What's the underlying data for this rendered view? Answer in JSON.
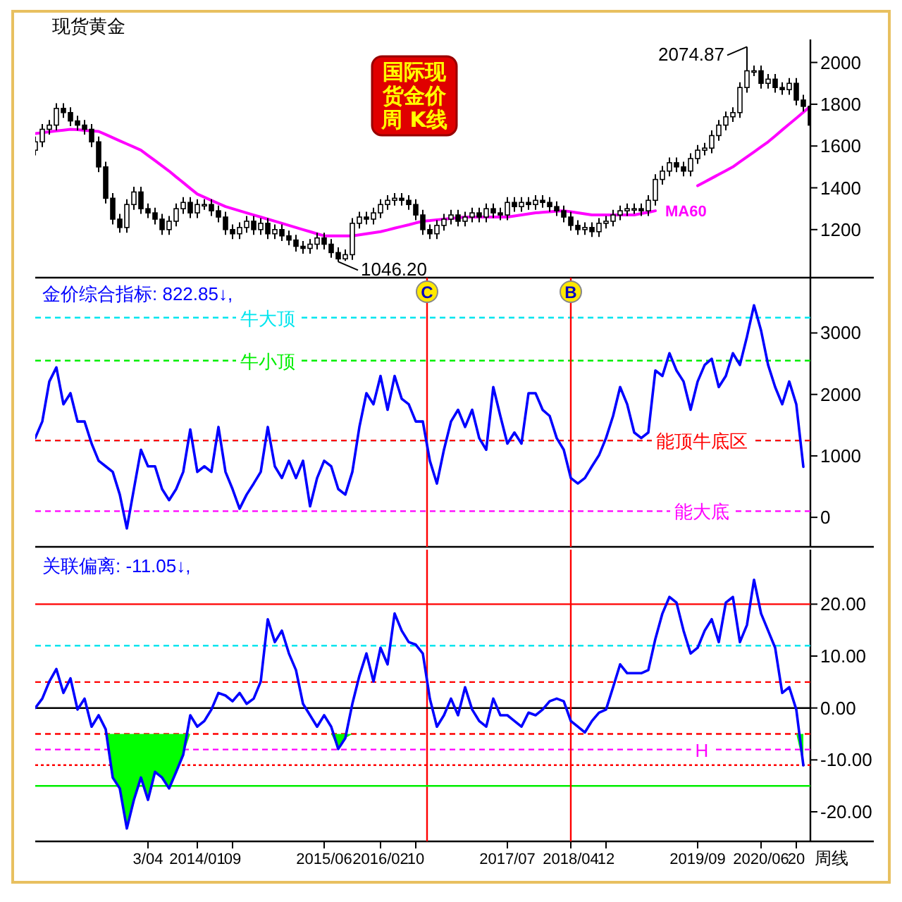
{
  "chart_data": [
    {
      "type": "candlestick",
      "title": "现货黄金",
      "annotations": [
        "国际现货金价周 K线",
        "2074.87",
        "1046.20"
      ],
      "categories": [
        null,
        null,
        null,
        null,
        null,
        null,
        null,
        null,
        null,
        null,
        null,
        null,
        null,
        null,
        null,
        null,
        null,
        null,
        null,
        null,
        null,
        null,
        null,
        null,
        null,
        null,
        null,
        null,
        null,
        null,
        null,
        null,
        null,
        null,
        null,
        null,
        null,
        null,
        null,
        null,
        null,
        null,
        null,
        null,
        null,
        null,
        null,
        null,
        null,
        null,
        null,
        null,
        null,
        null,
        null,
        null,
        null,
        null,
        null,
        null,
        null,
        null,
        null,
        null,
        null,
        null,
        null,
        null,
        null,
        null,
        null,
        null,
        null,
        null,
        null,
        null,
        null,
        null,
        null,
        null,
        null,
        null,
        null,
        null,
        null,
        null,
        null,
        null,
        null,
        null,
        null,
        null,
        null,
        null,
        null,
        null,
        null,
        null,
        null,
        null,
        null,
        null,
        null,
        null,
        null,
        null,
        null,
        null,
        null,
        null,
        null
      ],
      "ohlc": [
        [
          1580,
          1645,
          1555,
          1620
        ],
        [
          1620,
          1705,
          1595,
          1680
        ],
        [
          1680,
          1725,
          1655,
          1700
        ],
        [
          1700,
          1805,
          1675,
          1780
        ],
        [
          1780,
          1805,
          1735,
          1760
        ],
        [
          1760,
          1785,
          1695,
          1720
        ],
        [
          1720,
          1745,
          1675,
          1700
        ],
        [
          1700,
          1725,
          1655,
          1680
        ],
        [
          1680,
          1705,
          1595,
          1620
        ],
        [
          1620,
          1645,
          1475,
          1500
        ],
        [
          1500,
          1525,
          1325,
          1350
        ],
        [
          1350,
          1375,
          1225,
          1250
        ],
        [
          1250,
          1275,
          1185,
          1210
        ],
        [
          1210,
          1345,
          1185,
          1320
        ],
        [
          1320,
          1405,
          1295,
          1380
        ],
        [
          1380,
          1405,
          1275,
          1300
        ],
        [
          1300,
          1325,
          1255,
          1280
        ],
        [
          1280,
          1305,
          1225,
          1250
        ],
        [
          1250,
          1275,
          1175,
          1200
        ],
        [
          1200,
          1265,
          1175,
          1240
        ],
        [
          1240,
          1325,
          1215,
          1300
        ],
        [
          1300,
          1355,
          1275,
          1330
        ],
        [
          1330,
          1355,
          1255,
          1280
        ],
        [
          1280,
          1345,
          1255,
          1320
        ],
        [
          1320,
          1345,
          1295,
          1320
        ],
        [
          1320,
          1345,
          1265,
          1290
        ],
        [
          1290,
          1315,
          1235,
          1260
        ],
        [
          1260,
          1285,
          1175,
          1200
        ],
        [
          1200,
          1225,
          1155,
          1180
        ],
        [
          1180,
          1235,
          1155,
          1210
        ],
        [
          1210,
          1265,
          1185,
          1240
        ],
        [
          1240,
          1265,
          1175,
          1200
        ],
        [
          1200,
          1255,
          1175,
          1230
        ],
        [
          1230,
          1255,
          1155,
          1180
        ],
        [
          1180,
          1225,
          1155,
          1200
        ],
        [
          1200,
          1225,
          1145,
          1170
        ],
        [
          1170,
          1195,
          1125,
          1150
        ],
        [
          1150,
          1175,
          1095,
          1120
        ],
        [
          1120,
          1145,
          1085,
          1110
        ],
        [
          1110,
          1155,
          1085,
          1130
        ],
        [
          1130,
          1185,
          1105,
          1160
        ],
        [
          1160,
          1185,
          1105,
          1130
        ],
        [
          1130,
          1155,
          1065,
          1090
        ],
        [
          1090,
          1115,
          1046.2,
          1060
        ],
        [
          1060,
          1105,
          1050,
          1080
        ],
        [
          1080,
          1255,
          1055,
          1230
        ],
        [
          1230,
          1285,
          1205,
          1260
        ],
        [
          1260,
          1285,
          1225,
          1250
        ],
        [
          1250,
          1305,
          1225,
          1280
        ],
        [
          1280,
          1345,
          1255,
          1320
        ],
        [
          1320,
          1365,
          1295,
          1340
        ],
        [
          1340,
          1375,
          1315,
          1350
        ],
        [
          1350,
          1375,
          1315,
          1340
        ],
        [
          1340,
          1365,
          1295,
          1320
        ],
        [
          1320,
          1345,
          1245,
          1270
        ],
        [
          1270,
          1295,
          1175,
          1200
        ],
        [
          1200,
          1225,
          1155,
          1180
        ],
        [
          1180,
          1245,
          1155,
          1220
        ],
        [
          1220,
          1275,
          1195,
          1250
        ],
        [
          1250,
          1295,
          1225,
          1270
        ],
        [
          1270,
          1295,
          1215,
          1240
        ],
        [
          1240,
          1285,
          1215,
          1260
        ],
        [
          1260,
          1305,
          1235,
          1280
        ],
        [
          1280,
          1305,
          1235,
          1260
        ],
        [
          1260,
          1325,
          1235,
          1300
        ],
        [
          1300,
          1325,
          1255,
          1280
        ],
        [
          1280,
          1305,
          1245,
          1270
        ],
        [
          1270,
          1355,
          1245,
          1330
        ],
        [
          1330,
          1355,
          1285,
          1310
        ],
        [
          1310,
          1355,
          1285,
          1330
        ],
        [
          1330,
          1355,
          1295,
          1320
        ],
        [
          1320,
          1365,
          1295,
          1340
        ],
        [
          1340,
          1365,
          1305,
          1330
        ],
        [
          1330,
          1355,
          1285,
          1310
        ],
        [
          1310,
          1335,
          1265,
          1290
        ],
        [
          1290,
          1315,
          1235,
          1260
        ],
        [
          1260,
          1285,
          1195,
          1220
        ],
        [
          1220,
          1245,
          1175,
          1200
        ],
        [
          1200,
          1235,
          1175,
          1210
        ],
        [
          1210,
          1235,
          1165,
          1190
        ],
        [
          1190,
          1255,
          1165,
          1230
        ],
        [
          1230,
          1265,
          1205,
          1240
        ],
        [
          1240,
          1295,
          1215,
          1270
        ],
        [
          1270,
          1315,
          1245,
          1290
        ],
        [
          1290,
          1325,
          1265,
          1300
        ],
        [
          1300,
          1325,
          1275,
          1300
        ],
        [
          1300,
          1325,
          1265,
          1290
        ],
        [
          1290,
          1365,
          1265,
          1340
        ],
        [
          1340,
          1465,
          1315,
          1440
        ],
        [
          1440,
          1505,
          1415,
          1480
        ],
        [
          1480,
          1545,
          1455,
          1520
        ],
        [
          1520,
          1545,
          1475,
          1500
        ],
        [
          1500,
          1525,
          1455,
          1480
        ],
        [
          1480,
          1565,
          1455,
          1540
        ],
        [
          1540,
          1605,
          1515,
          1580
        ],
        [
          1580,
          1615,
          1555,
          1590
        ],
        [
          1590,
          1675,
          1565,
          1650
        ],
        [
          1650,
          1725,
          1625,
          1700
        ],
        [
          1700,
          1765,
          1675,
          1740
        ],
        [
          1740,
          1785,
          1715,
          1760
        ],
        [
          1760,
          1905,
          1735,
          1880
        ],
        [
          1880,
          2074.87,
          1855,
          1960
        ],
        [
          1960,
          1985,
          1935,
          1960
        ],
        [
          1960,
          1985,
          1875,
          1900
        ],
        [
          1900,
          1945,
          1875,
          1920
        ],
        [
          1920,
          1945,
          1855,
          1880
        ],
        [
          1880,
          1905,
          1845,
          1870
        ],
        [
          1870,
          1925,
          1845,
          1900
        ],
        [
          1900,
          1925,
          1795,
          1820
        ],
        [
          1820,
          1845,
          1765,
          1790
        ],
        [
          1790,
          1815,
          1675,
          1700
        ]
      ],
      "color": "#000000",
      "series": [
        {
          "name": "MA60",
          "type": "line",
          "color": "#ff00ff",
          "values": [
            1660,
            1664,
            1668,
            1672,
            1676,
            1680,
            1678,
            1675,
            1672,
            1670,
            1655,
            1640,
            1625,
            1610,
            1595,
            1580,
            1555,
            1530,
            1505,
            1480,
            1452,
            1425,
            1397,
            1370,
            1355,
            1340,
            1325,
            1310,
            1300,
            1290,
            1280,
            1270,
            1260,
            1250,
            1240,
            1230,
            1220,
            1210,
            1200,
            1190,
            1180,
            1170,
            1170,
            1170,
            1170,
            1170,
            1175,
            1180,
            1185,
            1190,
            1198,
            1207,
            1215,
            1223,
            1232,
            1240,
            1243,
            1247,
            1250,
            1253,
            1257,
            1260,
            1260,
            1260,
            1260,
            1260,
            1260,
            1260,
            1265,
            1270,
            1275,
            1280,
            1283,
            1285,
            1288,
            1290,
            1285,
            1280,
            1275,
            1270,
            1270,
            1270,
            1270,
            1270,
            1270,
            1270,
            1277,
            1283,
            1290,
            null,
            null,
            null,
            null,
            null,
            1410,
            1428,
            1446,
            1464,
            1482,
            1500,
            1524,
            1548,
            1572,
            1596,
            1620,
            1648,
            1677,
            1705,
            1733,
            1762,
            1790
          ]
        }
      ],
      "ylim": [
        970,
        2110
      ],
      "yticks": [
        1200,
        1400,
        1600,
        1800,
        2000
      ],
      "tick_labels": "y",
      "legend": false
    },
    {
      "type": "line",
      "title": "金价综合指标: 822.85↓,",
      "categories": [
        null,
        null,
        null,
        null,
        null,
        null,
        null,
        null,
        null,
        null,
        null,
        null,
        null,
        null,
        null,
        null,
        null,
        null,
        null,
        null,
        null,
        null,
        null,
        null,
        null,
        null,
        null,
        null,
        null,
        null,
        null,
        null,
        null,
        null,
        null,
        null,
        null,
        null,
        null,
        null,
        null,
        null,
        null,
        null,
        null,
        null,
        null,
        null,
        null,
        null,
        null,
        null,
        null,
        null,
        null,
        null,
        null,
        null,
        null,
        null,
        null,
        null,
        null,
        null,
        null,
        null,
        null,
        null,
        null,
        null,
        null,
        null,
        null,
        null,
        null,
        null,
        null,
        null,
        null,
        null,
        null,
        null,
        null,
        null,
        null,
        null,
        null,
        null,
        null,
        null,
        null,
        null,
        null,
        null,
        null,
        null,
        null,
        null,
        null,
        null,
        null,
        null,
        null,
        null,
        null,
        null,
        null,
        null,
        null,
        null
      ],
      "series": [
        {
          "color": "#0000ff",
          "values": [
            1290,
            1560,
            2210,
            2440,
            1840,
            2020,
            1560,
            1560,
            1200,
            920,
            830,
            740,
            370,
            -180,
            460,
            1100,
            830,
            830,
            460,
            280,
            460,
            740,
            1430,
            740,
            830,
            740,
            1470,
            740,
            460,
            140,
            370,
            550,
            740,
            1470,
            830,
            640,
            920,
            640,
            920,
            180,
            640,
            920,
            830,
            460,
            370,
            740,
            1470,
            2020,
            1840,
            2300,
            1750,
            2300,
            1930,
            1840,
            1560,
            1560,
            920,
            550,
            1100,
            1560,
            1750,
            1470,
            1750,
            1290,
            1100,
            2120,
            1650,
            1200,
            1380,
            1200,
            2020,
            2020,
            1750,
            1650,
            1290,
            1100,
            640,
            550,
            640,
            830,
            1010,
            1290,
            1650,
            2120,
            1840,
            1380,
            1290,
            1380,
            2390,
            2300,
            2670,
            2390,
            2210,
            1750,
            2210,
            2480,
            2580,
            2120,
            2300,
            2670,
            2480,
            2940,
            3450,
            3040,
            2480,
            2120,
            1840,
            2210,
            1840,
            822.85
          ]
        }
      ],
      "ref_lines": [
        {
          "axis": "y",
          "value": 3250,
          "label": "牛大顶",
          "color": "#00e5ee",
          "line_style": "dashed"
        },
        {
          "axis": "y",
          "value": 2550,
          "label": "牛小顶",
          "color": "#00ee00",
          "line_style": "dashed"
        },
        {
          "axis": "y",
          "value": 1250,
          "color": "#00e5ee",
          "line_style": "dashed"
        },
        {
          "axis": "y",
          "value": 1250,
          "label": "能顶牛底区",
          "color": "#ff0000",
          "line_style": "dashed"
        },
        {
          "axis": "y",
          "value": 100,
          "label": "能大底",
          "color": "#ff00ff",
          "line_style": "dashed"
        },
        {
          "axis": "x",
          "value": "2018/04",
          "label": "B",
          "color": "#ff0000",
          "line_style": "solid"
        }
      ],
      "annotations": [
        "C"
      ],
      "ylim": [
        -480,
        3900
      ],
      "yticks": [
        0,
        1000,
        2000,
        3000
      ],
      "tick_labels": "y"
    },
    {
      "type": "line",
      "title": "关联偏离: -11.05↓,",
      "xlabel": "周线",
      "categories": [
        null,
        null,
        null,
        null,
        null,
        null,
        null,
        null,
        null,
        null,
        null,
        null,
        null,
        null,
        null,
        null,
        "3/04",
        null,
        null,
        null,
        null,
        null,
        null,
        "2014/01",
        null,
        null,
        null,
        null,
        "09",
        null,
        null,
        null,
        null,
        null,
        null,
        null,
        null,
        null,
        null,
        null,
        null,
        "2015/06",
        null,
        null,
        null,
        null,
        null,
        null,
        null,
        "2016/02",
        null,
        null,
        null,
        null,
        "10",
        null,
        null,
        null,
        null,
        null,
        null,
        null,
        null,
        null,
        null,
        null,
        null,
        "2017/07",
        null,
        null,
        null,
        null,
        null,
        null,
        null,
        null,
        "2018/04",
        null,
        null,
        null,
        null,
        "12",
        null,
        null,
        null,
        null,
        null,
        null,
        null,
        null,
        null,
        null,
        null,
        null,
        "2019/09",
        null,
        null,
        null,
        null,
        null,
        null,
        null,
        null,
        "2020/06",
        null,
        null,
        null,
        null,
        "20",
        null
      ],
      "series": [
        {
          "color": "#0000ff",
          "values": [
            0,
            1.8,
            5.1,
            7.5,
            2.9,
            5.7,
            -0.3,
            1.8,
            -3.6,
            -1.4,
            -4.1,
            -13.4,
            -15.5,
            -23.2,
            -17.7,
            -13.4,
            -17.7,
            -12.3,
            -13.4,
            -15.5,
            -12.3,
            -9.0,
            -1.4,
            -3.6,
            -2.5,
            -0.3,
            2.9,
            2.4,
            1.3,
            2.9,
            0.8,
            1.8,
            5.1,
            17.1,
            12.7,
            14.9,
            10.5,
            7.3,
            0.8,
            -1.4,
            -3.6,
            -1.4,
            -3.6,
            -7.9,
            -5.8,
            0.8,
            6.2,
            10.5,
            5.1,
            11.6,
            8.4,
            18.2,
            14.9,
            12.7,
            12.2,
            10.5,
            1.8,
            -3.6,
            -1.4,
            1.8,
            -1.4,
            4.0,
            -0.3,
            -2.5,
            -3.6,
            1.8,
            -1.4,
            -1.4,
            -2.5,
            -3.6,
            -0.9,
            -1.4,
            -0.3,
            1.3,
            1.8,
            1.3,
            -2.5,
            -3.6,
            -4.7,
            -2.5,
            -0.9,
            -0.3,
            4.0,
            8.4,
            6.7,
            6.7,
            6.7,
            7.3,
            13.3,
            18.2,
            21.4,
            20.3,
            14.9,
            10.5,
            11.6,
            14.9,
            17.1,
            12.7,
            20.3,
            21.4,
            12.7,
            16.0,
            24.7,
            18.2,
            14.9,
            11.6,
            2.9,
            4.0,
            -0.3,
            -11.05
          ]
        },
        {
          "type": "area",
          "color": "#00ff00",
          "values": [
            null,
            null,
            null,
            null,
            null,
            null,
            null,
            null,
            null,
            null,
            -5,
            -13.4,
            -15.5,
            -23.2,
            -17.7,
            -13.4,
            -17.7,
            -12.3,
            -13.4,
            -15.5,
            -12.3,
            -9.0,
            -5,
            null,
            null,
            null,
            null,
            null,
            null,
            null,
            null,
            null,
            null,
            null,
            null,
            null,
            null,
            null,
            null,
            null,
            null,
            null,
            -5,
            -7.9,
            -5.8,
            -5,
            null,
            null,
            null,
            null,
            null,
            null,
            null,
            null,
            null,
            null,
            null,
            null,
            null,
            null,
            null,
            null,
            null,
            null,
            null,
            null,
            null,
            null,
            null,
            null,
            null,
            null,
            null,
            null,
            null,
            null,
            null,
            null,
            null,
            null,
            null,
            null,
            null,
            null,
            null,
            null,
            null,
            null,
            null,
            null,
            null,
            null,
            null,
            null,
            null,
            null,
            null,
            null,
            null,
            null,
            null,
            null,
            null,
            null,
            null,
            null,
            null,
            null,
            -5,
            -11.05
          ]
        }
      ],
      "ref_lines": [
        {
          "axis": "y",
          "value": 20,
          "color": "#ff0000",
          "line_style": "solid"
        },
        {
          "axis": "y",
          "value": 12,
          "color": "#00e5ee",
          "line_style": "dashed"
        },
        {
          "axis": "y",
          "value": 5,
          "color": "#ff0000",
          "line_style": "dashed"
        },
        {
          "axis": "y",
          "value": 0,
          "color": "#000000",
          "line_style": "solid"
        },
        {
          "axis": "y",
          "value": -5,
          "color": "#ff0000",
          "line_style": "dashed"
        },
        {
          "axis": "y",
          "value": -8,
          "label": "H",
          "color": "#ff00ff",
          "line_style": "dashed"
        },
        {
          "axis": "y",
          "value": -11,
          "color": "#ff0000",
          "line_style": "dotted"
        },
        {
          "axis": "y",
          "value": -15,
          "color": "#00ee00",
          "line_style": "solid"
        },
        {
          "axis": "x",
          "value": "2018/04",
          "color": "#ff0000",
          "line_style": "solid"
        }
      ],
      "ylim": [
        -25.7,
        30.5
      ],
      "yticks": [
        {
          "value": -20,
          "label": "-20.00"
        },
        {
          "value": -10,
          "label": "-10.00"
        },
        {
          "value": 0,
          "label": "0.00"
        },
        {
          "value": 10,
          "label": "10.00"
        },
        {
          "value": 20,
          "label": "20.00"
        }
      ]
    }
  ]
}
